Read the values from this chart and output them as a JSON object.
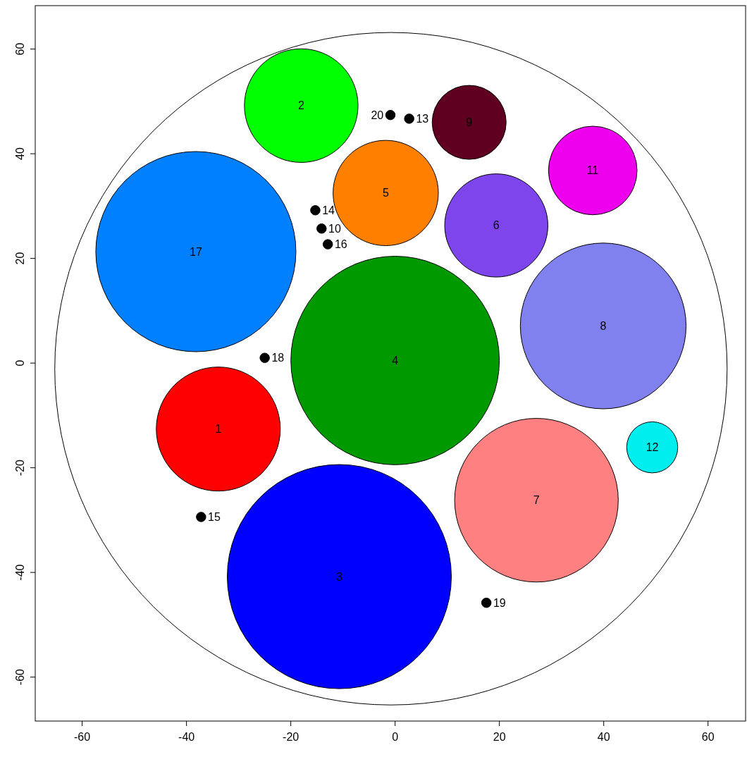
{
  "chart_data": {
    "type": "bubble",
    "xlim": [
      -69,
      67.2
    ],
    "ylim": [
      -68.4,
      68.3
    ],
    "xticks": [
      -60,
      -40,
      -20,
      0,
      20,
      40,
      60
    ],
    "yticks": [
      -60,
      -40,
      -20,
      0,
      20,
      40,
      60
    ],
    "grid": false,
    "x": [
      -33.9,
      -18.0,
      -10.7,
      0,
      -1.8,
      19.4,
      27.1,
      39.9,
      14.2,
      37.9,
      49.3,
      -38.2,
      -0.9,
      2.7,
      -15.3,
      -14.1,
      -12.9,
      -25.0,
      -37.2,
      17.5
    ],
    "values": [
      -12.6,
      49.2,
      -40.8,
      0.5,
      32.5,
      26.3,
      -26.2,
      7.1,
      46.0,
      36.8,
      -16.1,
      21.3,
      47.4,
      46.7,
      29.2,
      25.7,
      22.7,
      1.0,
      -29.4,
      -45.8
    ],
    "sizes": [
      0.3063,
      0.257,
      1,
      0.8653,
      0.2207,
      0.212,
      0.5332,
      0.5469,
      0.109,
      0.1563,
      0.0519,
      0.7974,
      0.0018,
      0.0018,
      0.0018,
      0.0018,
      0.0018,
      0.0018,
      0.0018,
      0.0018
    ],
    "colors": [
      "#ff0000",
      "#00ff00",
      "#0000ff",
      "#009900",
      "#ff8000",
      "#7f45ec",
      "#ff8080",
      "#8080ee",
      "#600020",
      "#ee00ee",
      "#00eeee",
      "#0080ff",
      "#000000",
      "#000000",
      "#000000",
      "#000000",
      "#000000",
      "#000000",
      "#000000",
      "#000000"
    ],
    "annotations": [
      {
        "text": "1",
        "x": -33.9,
        "y": -12.6
      },
      {
        "text": "2",
        "x": -18.0,
        "y": 49.2
      },
      {
        "text": "3",
        "x": -10.7,
        "y": -40.8
      },
      {
        "text": "4",
        "x": 0,
        "y": 0.5
      },
      {
        "text": "5",
        "x": -1.8,
        "y": 32.5
      },
      {
        "text": "6",
        "x": 19.4,
        "y": 26.3
      },
      {
        "text": "7",
        "x": 27.1,
        "y": -26.2
      },
      {
        "text": "8",
        "x": 39.9,
        "y": 7.1
      },
      {
        "text": "9",
        "x": 14.2,
        "y": 46.0
      },
      {
        "text": "11",
        "x": 37.9,
        "y": 36.8
      },
      {
        "text": "12",
        "x": 49.3,
        "y": -16.1
      },
      {
        "text": "17",
        "x": -38.2,
        "y": 21.3
      },
      {
        "text": "20",
        "x": -0.9,
        "y": 47.4
      },
      {
        "text": "13",
        "x": 2.7,
        "y": 46.7
      },
      {
        "text": "14",
        "x": -15.3,
        "y": 29.2
      },
      {
        "text": "10",
        "x": -14.1,
        "y": 25.7
      },
      {
        "text": "16",
        "x": -12.9,
        "y": 22.7
      },
      {
        "text": "18",
        "x": -25.0,
        "y": 1.0
      },
      {
        "text": "15",
        "x": -37.2,
        "y": -29.4
      },
      {
        "text": "19",
        "x": 17.5,
        "y": -45.8
      }
    ]
  }
}
